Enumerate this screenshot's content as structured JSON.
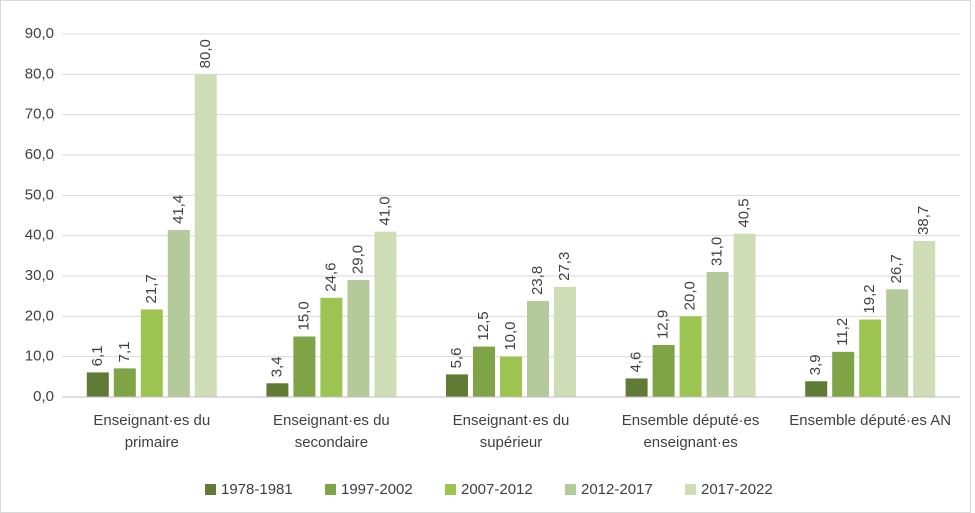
{
  "chart_data": {
    "type": "bar",
    "categories": [
      "Enseignant·es du primaire",
      "Enseignant·es du secondaire",
      "Enseignant·es du supérieur",
      "Ensemble député·es enseignant·es",
      "Ensemble député·es AN"
    ],
    "series": [
      {
        "name": "1978-1981",
        "color": "#5f7b36",
        "values": [
          6.1,
          3.4,
          5.6,
          4.6,
          3.9
        ],
        "value_labels": [
          "6,1",
          "3,4",
          "5,6",
          "4,6",
          "3,9"
        ]
      },
      {
        "name": "1997-2002",
        "color": "#7ea445",
        "values": [
          7.1,
          15.0,
          12.5,
          12.9,
          11.2
        ],
        "value_labels": [
          "7,1",
          "15,0",
          "12,5",
          "12,9",
          "11,2"
        ]
      },
      {
        "name": "2007-2012",
        "color": "#9cc451",
        "values": [
          21.7,
          24.6,
          10.0,
          20.0,
          19.2
        ],
        "value_labels": [
          "21,7",
          "24,6",
          "10,0",
          "20,0",
          "19,2"
        ]
      },
      {
        "name": "2012-2017",
        "color": "#b4ca9b",
        "values": [
          41.4,
          29.0,
          23.8,
          31.0,
          26.7
        ],
        "value_labels": [
          "41,4",
          "29,0",
          "23,8",
          "31,0",
          "26,7"
        ]
      },
      {
        "name": "2017-2022",
        "color": "#cfddb6",
        "values": [
          80.0,
          41.0,
          27.3,
          40.5,
          38.7
        ],
        "value_labels": [
          "80,0",
          "41,0",
          "27,3",
          "40,5",
          "38,7"
        ]
      }
    ],
    "ylim": [
      0,
      90
    ],
    "yticks": [
      {
        "value": 0,
        "label": "0,0"
      },
      {
        "value": 10,
        "label": "10,0"
      },
      {
        "value": 20,
        "label": "20,0"
      },
      {
        "value": 30,
        "label": "30,0"
      },
      {
        "value": 40,
        "label": "40,0"
      },
      {
        "value": 50,
        "label": "50,0"
      },
      {
        "value": 60,
        "label": "60,0"
      },
      {
        "value": 70,
        "label": "70,0"
      },
      {
        "value": 80,
        "label": "80,0"
      },
      {
        "value": 90,
        "label": "90,0"
      }
    ],
    "grid": true,
    "legend": "bottom"
  }
}
